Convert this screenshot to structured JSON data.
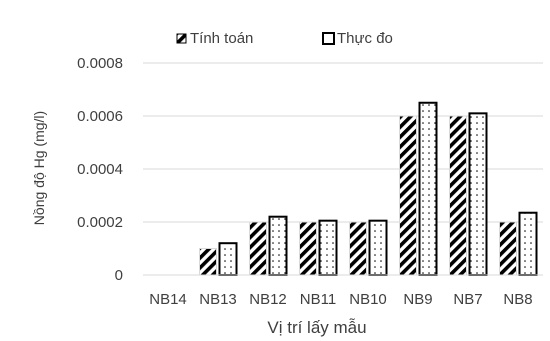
{
  "chart_data": {
    "type": "bar",
    "title": "",
    "xlabel": "Vị trí lấy mẫu",
    "ylabel": "Nồng độ Hg (mg/l)",
    "categories": [
      "NB14",
      "NB13",
      "NB12",
      "NB11",
      "NB10",
      "NB9",
      "NB7",
      "NB8"
    ],
    "series": [
      {
        "name": "Tính toán",
        "values": [
          0,
          0.0001,
          0.0002,
          0.0002,
          0.0002,
          0.0006,
          0.0006,
          0.0002
        ]
      },
      {
        "name": "Thực đo",
        "values": [
          0,
          0.00012,
          0.00022,
          0.000205,
          0.000205,
          0.00065,
          0.00061,
          0.000235
        ]
      }
    ],
    "ylim": [
      0,
      0.0008
    ],
    "yticks": [
      0,
      0.0002,
      0.0004,
      0.0006,
      0.0008
    ],
    "ytick_labels": [
      "0",
      "0.0002",
      "0.0004",
      "0.0006",
      "0.0008"
    ],
    "grid": true,
    "legend_position": "top"
  },
  "colors": {
    "axis": "#d9d9d9",
    "bar_outline": "#000000",
    "text": "#3f3f3f"
  }
}
